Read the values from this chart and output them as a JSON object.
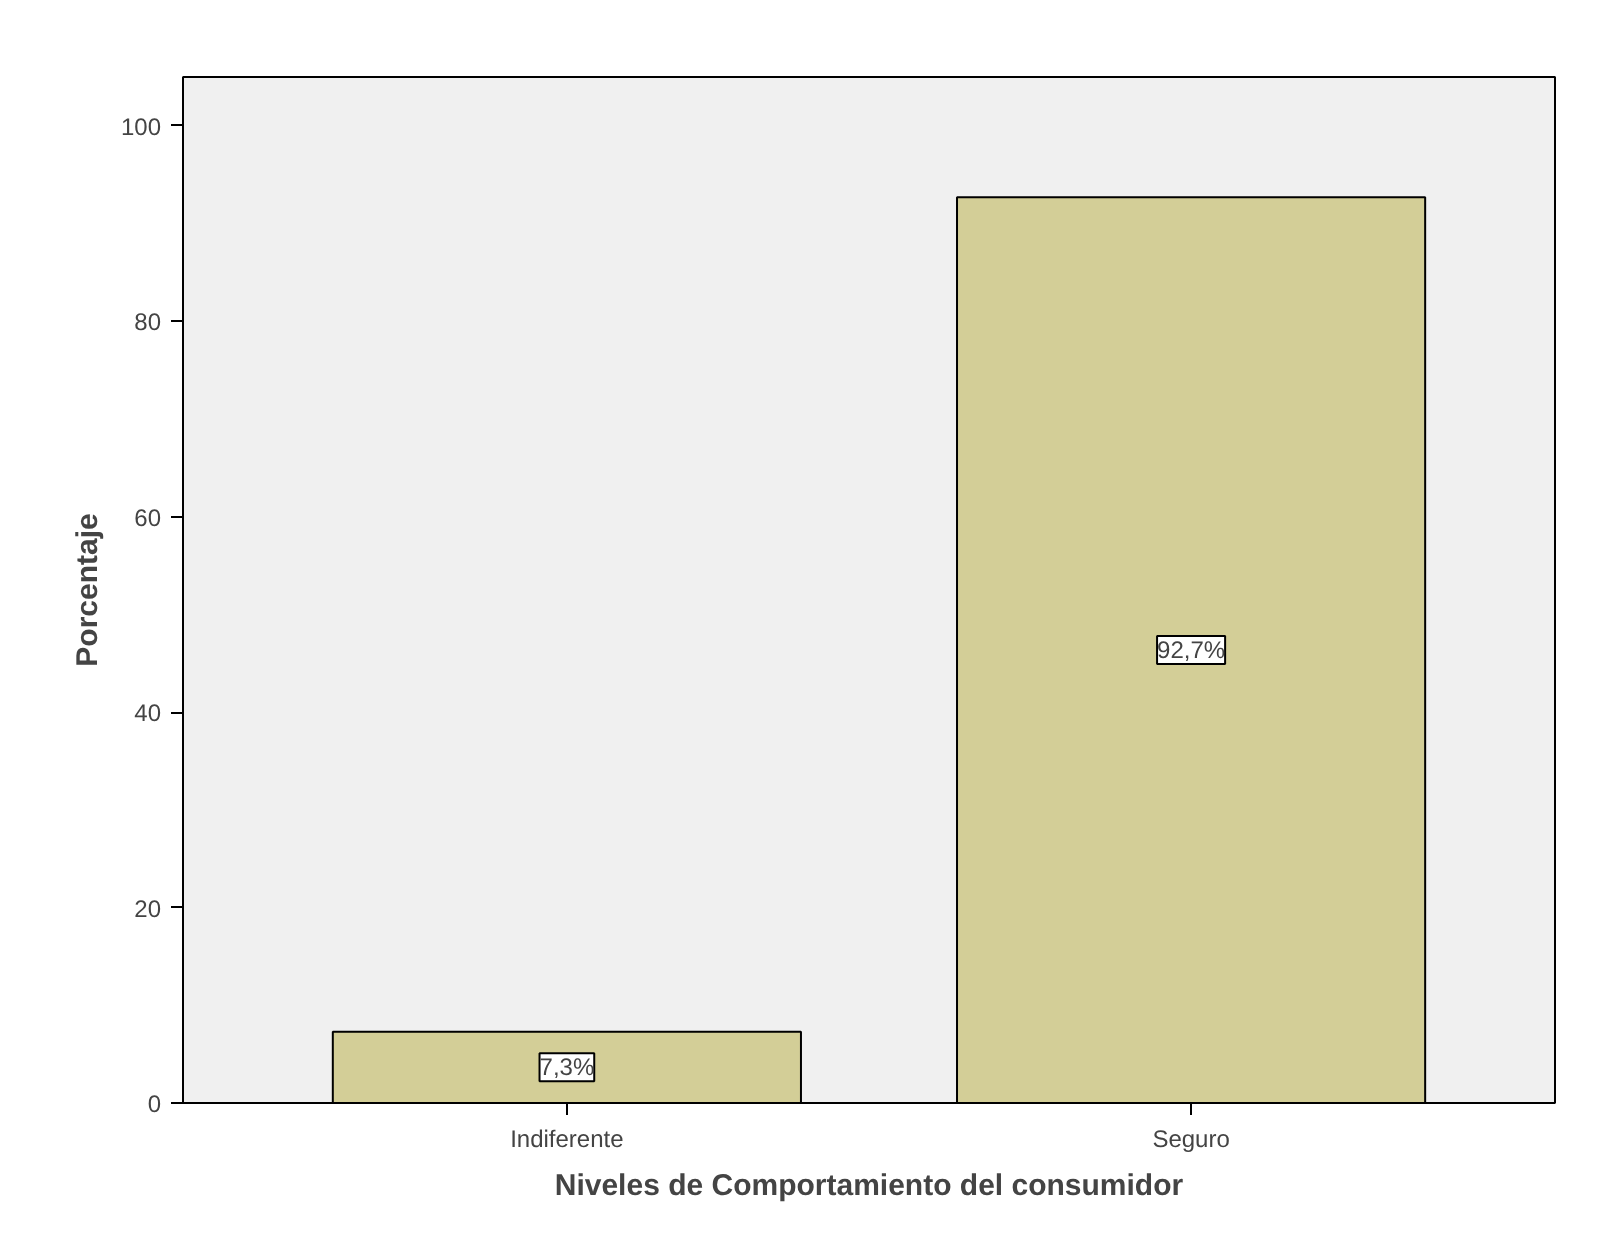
{
  "chart_data": {
    "type": "bar",
    "xlabel": "Niveles de Comportamiento del consumidor",
    "ylabel": "Porcentaje",
    "categories": [
      "Indiferente",
      "Seguro"
    ],
    "values": [
      7.3,
      92.7
    ],
    "value_labels": [
      "7,3%",
      "92,7%"
    ],
    "color": "#d3ce97",
    "ylim": [
      0,
      105
    ],
    "yticks": [
      0,
      20,
      40,
      60,
      80,
      100
    ],
    "grid": false
  }
}
